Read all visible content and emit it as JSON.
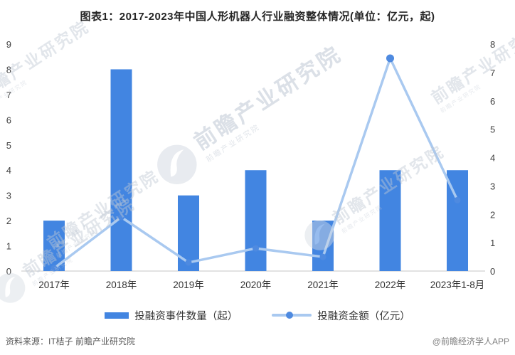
{
  "title": "图表1：2017-2023年中国人形机器人行业融资整体情况(单位：亿元，起)",
  "chart_data": {
    "type": "bar",
    "subtype": "bar+line combo, dual y-axis",
    "categories": [
      "2017年",
      "2018年",
      "2019年",
      "2020年",
      "2021年",
      "2022年",
      "2023年1-8月"
    ],
    "series": [
      {
        "name": "投融资事件数量（起）",
        "type": "bar",
        "axis": "left",
        "values": [
          2,
          8,
          3,
          4,
          2,
          4,
          4
        ],
        "color": "#4285e1"
      },
      {
        "name": "投融资金额（亿元）",
        "type": "line",
        "axis": "right",
        "values": [
          0.1,
          1.9,
          0.3,
          0.8,
          0.5,
          7.5,
          2.5
        ],
        "color": "#a9c9f0",
        "marker_color": "#4e8ae0"
      }
    ],
    "left_axis": {
      "min": 0,
      "max": 9,
      "ticks": [
        0,
        1,
        2,
        3,
        4,
        5,
        6,
        7,
        8,
        9
      ]
    },
    "right_axis": {
      "min": 0,
      "max": 8,
      "ticks": [
        0,
        1,
        2,
        3,
        4,
        5,
        6,
        7,
        8
      ]
    },
    "grid": false,
    "legend_position": "bottom",
    "axis_line_color": "#d9d9d9"
  },
  "legend": {
    "bar_label": "投融资事件数量（起）",
    "line_label": "投融资金额（亿元）"
  },
  "footer": {
    "source": "资料来源：IT桔子 前瞻产业研究院",
    "credit": "@前瞻经济学人APP"
  },
  "watermark": {
    "text": "前瞻产业研究院",
    "subtext": "前瞻产业研究院"
  }
}
